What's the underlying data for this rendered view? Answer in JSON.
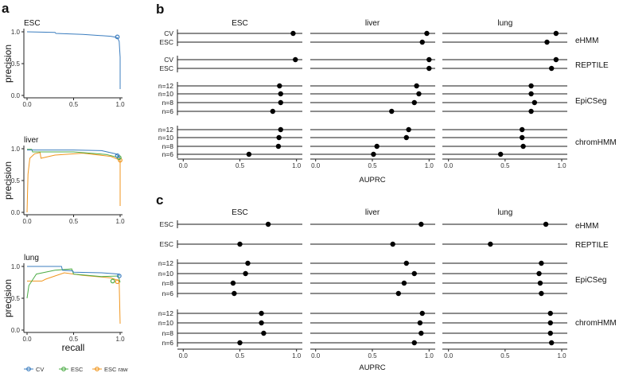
{
  "colors": {
    "CV": "#3b7dbf",
    "ESC": "#4dac47",
    "ESC raw": "#f0961e",
    "dot": "#000000",
    "line": "#1a1a1a"
  },
  "chart_data": [
    {
      "type": "line",
      "panel_label": "a",
      "xlabel": "recall",
      "ylabel": "precision",
      "xlim": [
        0,
        1
      ],
      "ylim": [
        0,
        1
      ],
      "xticks": [
        "0.0",
        "0.5",
        "1.0"
      ],
      "yticks": [
        "0.0",
        "0.5",
        "1.0"
      ],
      "legend": {
        "placement": "bottom",
        "entries": [
          "CV",
          "ESC",
          "ESC raw"
        ]
      },
      "subplots": [
        {
          "title": "ESC",
          "series": [
            {
              "name": "CV",
              "points": [
                [
                  0,
                  1.0
                ],
                [
                  0.3,
                  0.99
                ],
                [
                  0.31,
                  0.975
                ],
                [
                  0.6,
                  0.96
                ],
                [
                  0.9,
                  0.93
                ],
                [
                  0.97,
                  0.91
                ],
                [
                  0.99,
                  0.85
                ],
                [
                  1.0,
                  0.6
                ],
                [
                  1.0,
                  0.1
                ]
              ],
              "marker": [
                0.97,
                0.92
              ]
            }
          ]
        },
        {
          "title": "liver",
          "series": [
            {
              "name": "CV",
              "points": [
                [
                  0,
                  0.98
                ],
                [
                  0.5,
                  0.98
                ],
                [
                  0.8,
                  0.97
                ],
                [
                  0.95,
                  0.92
                ],
                [
                  0.98,
                  0.89
                ],
                [
                  1.0,
                  0.85
                ]
              ],
              "marker": [
                0.97,
                0.89
              ]
            },
            {
              "name": "ESC",
              "points": [
                [
                  0,
                  0.99
                ],
                [
                  0.05,
                  0.99
                ],
                [
                  0.06,
                  0.95
                ],
                [
                  0.5,
                  0.95
                ],
                [
                  0.85,
                  0.91
                ],
                [
                  0.99,
                  0.86
                ]
              ],
              "marker": [
                0.99,
                0.86
              ]
            },
            {
              "name": "ESC raw",
              "points": [
                [
                  0,
                  0.0
                ],
                [
                  0.01,
                  0.6
                ],
                [
                  0.03,
                  0.85
                ],
                [
                  0.08,
                  0.92
                ],
                [
                  0.14,
                  0.94
                ],
                [
                  0.15,
                  0.85
                ],
                [
                  0.3,
                  0.9
                ],
                [
                  0.6,
                  0.93
                ],
                [
                  0.9,
                  0.88
                ],
                [
                  1.0,
                  0.82
                ],
                [
                  1.0,
                  0.1
                ]
              ],
              "marker": [
                1.0,
                0.82
              ]
            }
          ]
        },
        {
          "title": "lung",
          "series": [
            {
              "name": "CV",
              "points": [
                [
                  0,
                  1.0
                ],
                [
                  0.37,
                  1.0
                ],
                [
                  0.38,
                  0.94
                ],
                [
                  0.49,
                  0.93
                ],
                [
                  0.5,
                  0.91
                ],
                [
                  0.8,
                  0.9
                ],
                [
                  0.99,
                  0.88
                ],
                [
                  0.99,
                  0.85
                ]
              ],
              "marker": [
                0.99,
                0.85
              ]
            },
            {
              "name": "ESC",
              "points": [
                [
                  0,
                  0.5
                ],
                [
                  0.02,
                  0.7
                ],
                [
                  0.1,
                  0.88
                ],
                [
                  0.3,
                  0.94
                ],
                [
                  0.48,
                  0.96
                ],
                [
                  0.5,
                  0.88
                ],
                [
                  0.8,
                  0.84
                ],
                [
                  0.98,
                  0.85
                ],
                [
                  0.99,
                  0.8
                ],
                [
                  1.0,
                  0.75
                ]
              ],
              "marker": [
                0.92,
                0.77
              ]
            },
            {
              "name": "ESC raw",
              "points": [
                [
                  0,
                  0.77
                ],
                [
                  0.16,
                  0.77
                ],
                [
                  0.2,
                  0.8
                ],
                [
                  0.4,
                  0.9
                ],
                [
                  0.6,
                  0.86
                ],
                [
                  0.9,
                  0.82
                ],
                [
                  0.98,
                  0.78
                ],
                [
                  0.99,
                  0.74
                ],
                [
                  1.0,
                  0.1
                ]
              ],
              "marker": [
                0.97,
                0.76
              ]
            }
          ]
        }
      ]
    },
    {
      "type": "scatter",
      "panel_label": "b",
      "xlabel": "AUPRC",
      "xlim": [
        0,
        1
      ],
      "xticks": [
        "0.0",
        "0.5",
        "1.0"
      ],
      "facets": [
        "ESC",
        "liver",
        "lung"
      ],
      "groups": [
        {
          "name": "eHMM",
          "rows": [
            "CV",
            "ESC"
          ],
          "values": [
            [
              0.97,
              null
            ],
            [
              0.98,
              0.94
            ],
            [
              0.95,
              0.87
            ]
          ]
        },
        {
          "name": "REPTILE",
          "rows": [
            "CV",
            "ESC"
          ],
          "values": [
            [
              0.99,
              null
            ],
            [
              1.0,
              1.0
            ],
            [
              0.95,
              0.91
            ]
          ]
        },
        {
          "name": "EpiCSeg",
          "rows": [
            "n=12",
            "n=10",
            "n=8",
            "n=6"
          ],
          "values": [
            [
              0.85,
              0.86,
              0.86,
              0.79
            ],
            [
              0.89,
              0.91,
              0.87,
              0.67
            ],
            [
              0.73,
              0.73,
              0.76,
              0.73
            ]
          ]
        },
        {
          "name": "chromHMM",
          "rows": [
            "n=12",
            "n=10",
            "n=8",
            "n=6"
          ],
          "values": [
            [
              0.86,
              0.845,
              0.84,
              0.58
            ],
            [
              0.82,
              0.8,
              0.54,
              0.51
            ],
            [
              0.65,
              0.65,
              0.66,
              0.46
            ]
          ]
        }
      ]
    },
    {
      "type": "scatter",
      "panel_label": "c",
      "xlabel": "AUPRC",
      "xlim": [
        0,
        1
      ],
      "xticks": [
        "0.0",
        "0.5",
        "1.0"
      ],
      "facets": [
        "ESC",
        "liver",
        "lung"
      ],
      "groups": [
        {
          "name": "eHMM",
          "rows": [
            "ESC"
          ],
          "values": [
            [
              0.75
            ],
            [
              0.93
            ],
            [
              0.86
            ]
          ]
        },
        {
          "name": "REPTILE",
          "rows": [
            "ESC"
          ],
          "values": [
            [
              0.5
            ],
            [
              0.68
            ],
            [
              0.37
            ]
          ]
        },
        {
          "name": "EpiCSeg",
          "rows": [
            "n=12",
            "n=10",
            "n=8",
            "n=6"
          ],
          "values": [
            [
              0.57,
              0.55,
              0.44,
              0.45
            ],
            [
              0.8,
              0.87,
              0.78,
              0.73
            ],
            [
              0.82,
              0.8,
              0.81,
              0.82
            ]
          ]
        },
        {
          "name": "chromHMM",
          "rows": [
            "n=12",
            "n=10",
            "n=8",
            "n=6"
          ],
          "values": [
            [
              0.69,
              0.69,
              0.71,
              0.5
            ],
            [
              0.94,
              0.92,
              0.93,
              0.87
            ],
            [
              0.9,
              0.9,
              0.9,
              0.91
            ]
          ]
        }
      ]
    }
  ]
}
